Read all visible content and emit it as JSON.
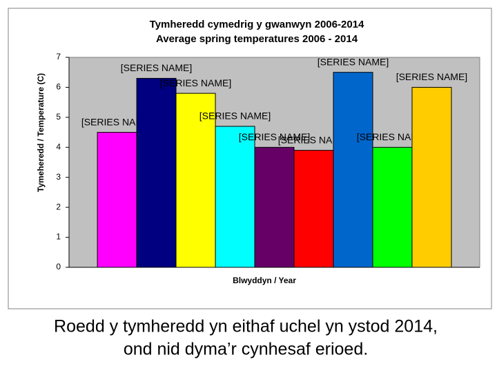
{
  "chart_data": {
    "type": "bar",
    "title": [
      "Tymheredd cymedrig y gwanwyn 2006-2014",
      "Average spring temperatures 2006 - 2014"
    ],
    "y_label": "Tymeheredd / Temperature (C)",
    "x_label": "Blwyddyn / Year",
    "categories": [
      null
    ],
    "series": [
      {
        "name": "[SERIES NAME]",
        "color": "#ff00ff",
        "values": [
          4.5
        ]
      },
      {
        "name": "[SERIES NAME]",
        "color": "#000080",
        "values": [
          6.3
        ]
      },
      {
        "name": "[SERIES NAME]",
        "color": "#ffff00",
        "values": [
          5.8
        ]
      },
      {
        "name": "[SERIES NAME]",
        "color": "#00ffff",
        "values": [
          4.7
        ]
      },
      {
        "name": "[SERIES NAME]",
        "color": "#660066",
        "values": [
          4.0
        ]
      },
      {
        "name": "[SERIES NAME]",
        "color": "#ff0000",
        "values": [
          3.9
        ]
      },
      {
        "name": "[SERIES NAME]",
        "color": "#0066cc",
        "values": [
          6.5
        ]
      },
      {
        "name": "[SERIES NAME]",
        "color": "#00ff00",
        "values": [
          4.0
        ]
      },
      {
        "name": "[SERIES NAME]",
        "color": "#ffcc00",
        "values": [
          6.0
        ]
      }
    ],
    "ylim": [
      0,
      7
    ],
    "yticks": [
      0,
      1,
      2,
      3,
      4,
      5,
      6,
      7
    ],
    "grid": false
  },
  "caption": [
    "Roedd y tymheredd yn eithaf uchel yn ystod 2014,",
    "ond nid dyma’r cynhesaf erioed."
  ]
}
